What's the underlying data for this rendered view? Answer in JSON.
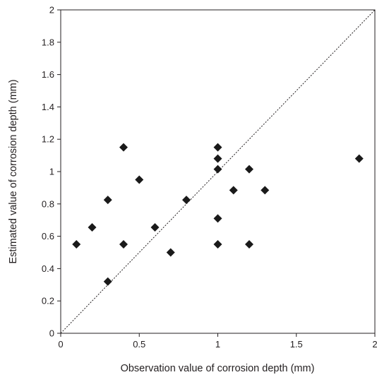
{
  "chart_data": {
    "type": "scatter",
    "title": "",
    "xlabel": "Observation value of corrosion depth (mm)",
    "ylabel": "Estimated value of corrosion depth (mm)",
    "xlim": [
      0,
      2
    ],
    "ylim": [
      0,
      2
    ],
    "x_ticks": [
      "0",
      "0.5",
      "1",
      "1.5",
      "2"
    ],
    "y_ticks": [
      "0",
      "0.2",
      "0.4",
      "0.6",
      "0.8",
      "1",
      "1.2",
      "1.4",
      "1.6",
      "1.8",
      "2"
    ],
    "grid": false,
    "legend": "none",
    "reference_line": {
      "type": "y=x",
      "style": "dotted"
    },
    "marker": "diamond",
    "marker_color": "#1a1a1a",
    "points": [
      {
        "x": 0.1,
        "y": 0.55
      },
      {
        "x": 0.2,
        "y": 0.655
      },
      {
        "x": 0.3,
        "y": 0.825
      },
      {
        "x": 0.3,
        "y": 0.32
      },
      {
        "x": 0.4,
        "y": 1.15
      },
      {
        "x": 0.4,
        "y": 0.55
      },
      {
        "x": 0.5,
        "y": 0.95
      },
      {
        "x": 0.6,
        "y": 0.655
      },
      {
        "x": 0.7,
        "y": 0.5
      },
      {
        "x": 0.8,
        "y": 0.825
      },
      {
        "x": 1.0,
        "y": 1.15
      },
      {
        "x": 1.0,
        "y": 1.08
      },
      {
        "x": 1.0,
        "y": 1.015
      },
      {
        "x": 1.0,
        "y": 0.71
      },
      {
        "x": 1.0,
        "y": 0.55
      },
      {
        "x": 1.1,
        "y": 0.885
      },
      {
        "x": 1.2,
        "y": 1.015
      },
      {
        "x": 1.2,
        "y": 0.55
      },
      {
        "x": 1.3,
        "y": 0.885
      },
      {
        "x": 1.9,
        "y": 1.08
      }
    ]
  }
}
